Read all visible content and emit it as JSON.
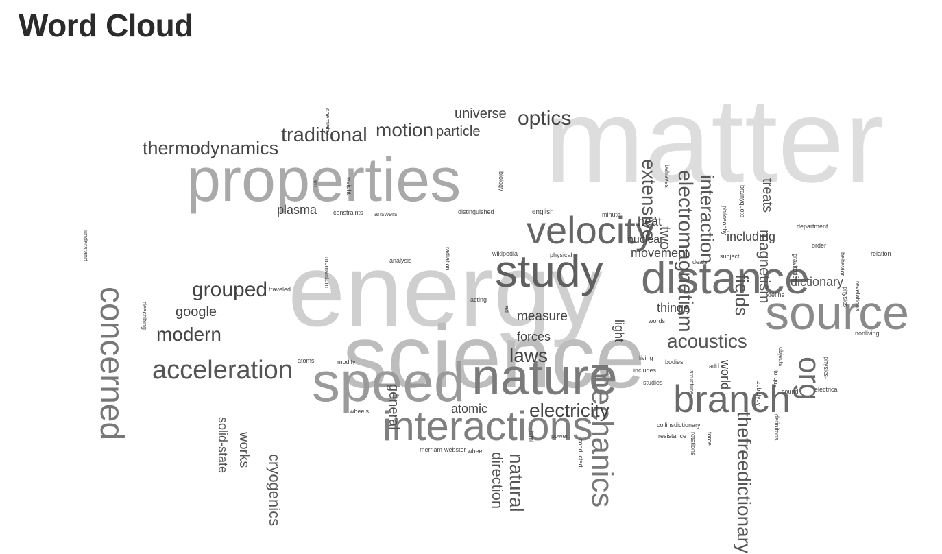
{
  "title": "Word Cloud",
  "words": [
    {
      "text": "matter"
    },
    {
      "text": "energy"
    },
    {
      "text": "science"
    },
    {
      "text": "properties"
    },
    {
      "text": "speed"
    },
    {
      "text": "nature"
    },
    {
      "text": "source"
    },
    {
      "text": "distance"
    },
    {
      "text": "study"
    },
    {
      "text": "interactions"
    },
    {
      "text": "velocity"
    },
    {
      "text": "branch"
    },
    {
      "text": "concerned"
    },
    {
      "text": "mechanics"
    },
    {
      "text": "org"
    },
    {
      "text": "acceleration"
    },
    {
      "text": "electromagnetism"
    },
    {
      "text": "thermodynamics"
    },
    {
      "text": "traditional"
    },
    {
      "text": "motion"
    },
    {
      "text": "optics"
    },
    {
      "text": "universe"
    },
    {
      "text": "particle"
    },
    {
      "text": "grouped"
    },
    {
      "text": "modern"
    },
    {
      "text": "google"
    },
    {
      "text": "acoustics"
    },
    {
      "text": "electricity"
    },
    {
      "text": "laws"
    },
    {
      "text": "interaction"
    },
    {
      "text": "extensive"
    },
    {
      "text": "thefreedictionary"
    },
    {
      "text": "natural"
    },
    {
      "text": "direction"
    },
    {
      "text": "cryogenics"
    },
    {
      "text": "works"
    },
    {
      "text": "solid-state"
    },
    {
      "text": "magnetism"
    },
    {
      "text": "fields"
    },
    {
      "text": "dictionary"
    },
    {
      "text": "including"
    },
    {
      "text": "treats"
    },
    {
      "text": "movement"
    },
    {
      "text": "nuclear"
    },
    {
      "text": "heat"
    },
    {
      "text": "measure"
    },
    {
      "text": "forces"
    },
    {
      "text": "things"
    },
    {
      "text": "atomic"
    },
    {
      "text": "general"
    },
    {
      "text": "plasma"
    },
    {
      "text": "light"
    },
    {
      "text": "world"
    },
    {
      "text": "two"
    },
    {
      "text": "constraints"
    },
    {
      "text": "answers"
    },
    {
      "text": "distinguished"
    },
    {
      "text": "english"
    },
    {
      "text": "minute"
    },
    {
      "text": "wikipedia"
    },
    {
      "text": "physical"
    },
    {
      "text": "analysis"
    },
    {
      "text": "radiation"
    },
    {
      "text": "momentum"
    },
    {
      "text": "traveled"
    },
    {
      "text": "acting"
    },
    {
      "text": "atoms"
    },
    {
      "text": "modify"
    },
    {
      "text": "wheels"
    },
    {
      "text": "merriam-webster"
    },
    {
      "text": "wheel"
    },
    {
      "text": "power"
    },
    {
      "text": "conducted"
    },
    {
      "text": "html"
    },
    {
      "text": "ad"
    },
    {
      "text": "chemistry"
    },
    {
      "text": "en"
    },
    {
      "text": "weight"
    },
    {
      "text": "biology"
    },
    {
      "text": "understand"
    },
    {
      "text": "describing"
    },
    {
      "text": "department"
    },
    {
      "text": "order"
    },
    {
      "text": "relation"
    },
    {
      "text": "behavior"
    },
    {
      "text": "revelations"
    },
    {
      "text": "nonliving"
    },
    {
      "text": "physics-"
    },
    {
      "text": "electrical"
    },
    {
      "text": "objects"
    },
    {
      "text": "torque"
    },
    {
      "text": "sound"
    },
    {
      "text": "zgbpfyuy"
    },
    {
      "text": "definitons"
    },
    {
      "text": "gravitation"
    },
    {
      "text": "define"
    },
    {
      "text": "subject"
    },
    {
      "text": "deals"
    },
    {
      "text": "philosophy"
    },
    {
      "text": "brainyquote"
    },
    {
      "text": "behaves"
    },
    {
      "text": "words"
    },
    {
      "text": "living"
    },
    {
      "text": "bodies"
    },
    {
      "text": "includes"
    },
    {
      "text": "studies"
    },
    {
      "text": "add"
    },
    {
      "text": "structure"
    },
    {
      "text": "collinsdictionary"
    },
    {
      "text": "resistance"
    },
    {
      "text": "rotations"
    },
    {
      "text": "force"
    },
    {
      "text": "physics-"
    }
  ]
}
